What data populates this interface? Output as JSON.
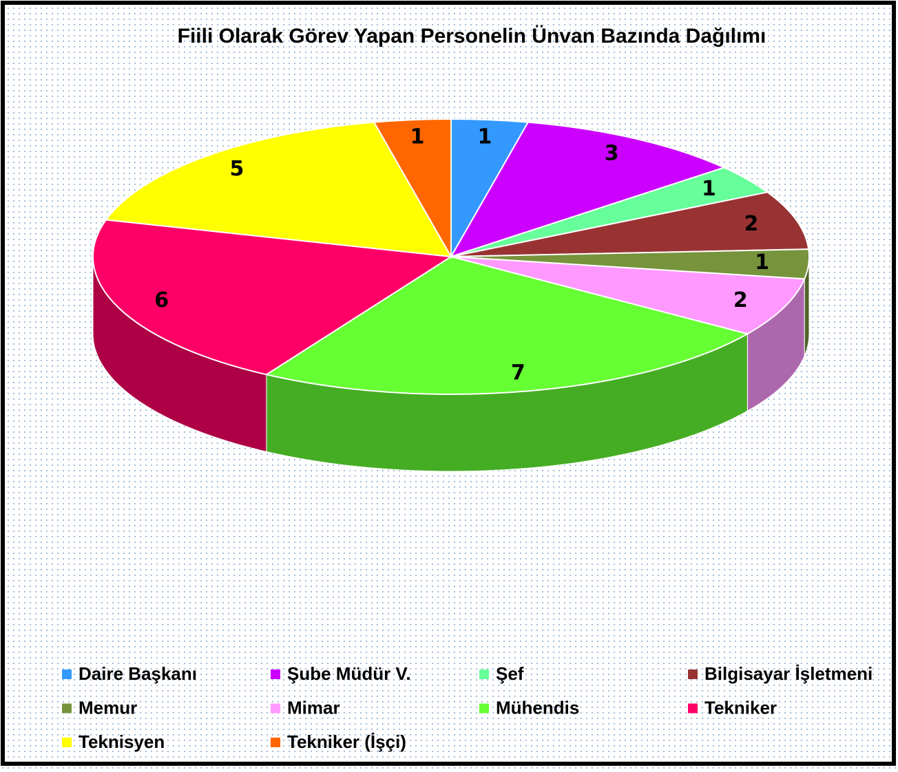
{
  "chart_data": {
    "type": "pie3d",
    "title": "Fiili Olarak Görev Yapan Personelin Ünvan Bazında Dağılımı",
    "categories": [
      "Daire Başkanı",
      "Şube Müdür V.",
      "Şef",
      "Bilgisayar İşletmeni",
      "Memur",
      "Mimar",
      "Mühendis",
      "Tekniker",
      "Teknisyen",
      "Tekniker (İşçi)"
    ],
    "values": [
      1,
      3,
      1,
      2,
      1,
      2,
      7,
      6,
      5,
      1
    ],
    "colors": [
      "#3399ff",
      "#cc00ff",
      "#66ff99",
      "#993333",
      "#77933c",
      "#ff99ff",
      "#66ff33",
      "#ff0066",
      "#ffff00",
      "#ff6600"
    ],
    "legend": "bottom"
  }
}
